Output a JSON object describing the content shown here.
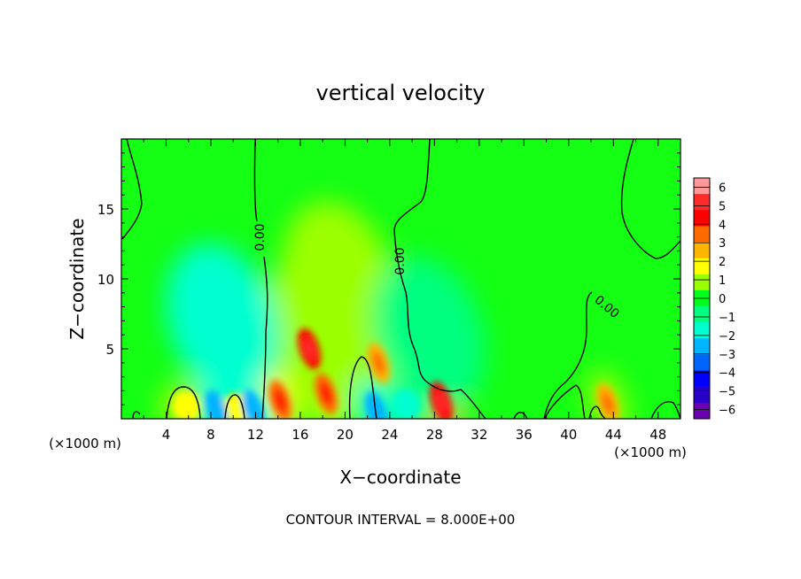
{
  "chart_data": {
    "type": "heatmap",
    "title": "vertical velocity",
    "xlabel": "X−coordinate",
    "ylabel": "Z−coordinate",
    "x_unit_label": "(×1000 m)",
    "footer": "CONTOUR INTERVAL = 8.000E+00",
    "contour_label": "0.00",
    "xlim": [
      0,
      50
    ],
    "ylim": [
      0,
      20
    ],
    "x_ticks": [
      "4",
      "8",
      "12",
      "16",
      "20",
      "24",
      "28",
      "32",
      "36",
      "40",
      "44",
      "48"
    ],
    "y_ticks": [
      "5",
      "10",
      "15"
    ],
    "colorbar": {
      "levels": [
        "6",
        "5",
        "4",
        "3",
        "2",
        "1",
        "0",
        "−1",
        "−2",
        "−3",
        "−4",
        "−5",
        "−6"
      ],
      "colors": [
        "#ff9999",
        "#ff2a2a",
        "#ff0000",
        "#ff6a00",
        "#ffb400",
        "#ffff00",
        "#9cff00",
        "#00ff1e",
        "#00ff80",
        "#00ffd0",
        "#00b4ff",
        "#0064ff",
        "#0000ff",
        "#2800c8",
        "#6a00b4"
      ]
    },
    "features": [
      {
        "x": 16.8,
        "z": 5.0,
        "value": 5.3
      },
      {
        "x": 18.3,
        "z": 1.8,
        "value": 4.5
      },
      {
        "x": 23.0,
        "z": 4.0,
        "value": 3.2
      },
      {
        "x": 28.6,
        "z": 1.2,
        "value": 4.8
      },
      {
        "x": 14.2,
        "z": 1.3,
        "value": 3.6
      },
      {
        "x": 43.5,
        "z": 1.1,
        "value": 3.4
      },
      {
        "x": 10.3,
        "z": 0.7,
        "value": 2.0
      },
      {
        "x": 5.8,
        "z": 0.9,
        "value": 1.6
      },
      {
        "x": 19.5,
        "z": 10.0,
        "value": 0.8
      },
      {
        "x": 18.0,
        "z": 6.5,
        "value": 1.5
      },
      {
        "x": 9.0,
        "z": 7.0,
        "value": -1.6
      },
      {
        "x": 27.5,
        "z": 6.0,
        "value": -1.1
      },
      {
        "x": 25.5,
        "z": 1.0,
        "value": -2.4
      },
      {
        "x": 8.5,
        "z": 0.6,
        "value": -2.6
      },
      {
        "x": 11.8,
        "z": 0.6,
        "value": -2.6
      },
      {
        "x": 22.8,
        "z": 0.5,
        "value": -2.8
      }
    ]
  }
}
